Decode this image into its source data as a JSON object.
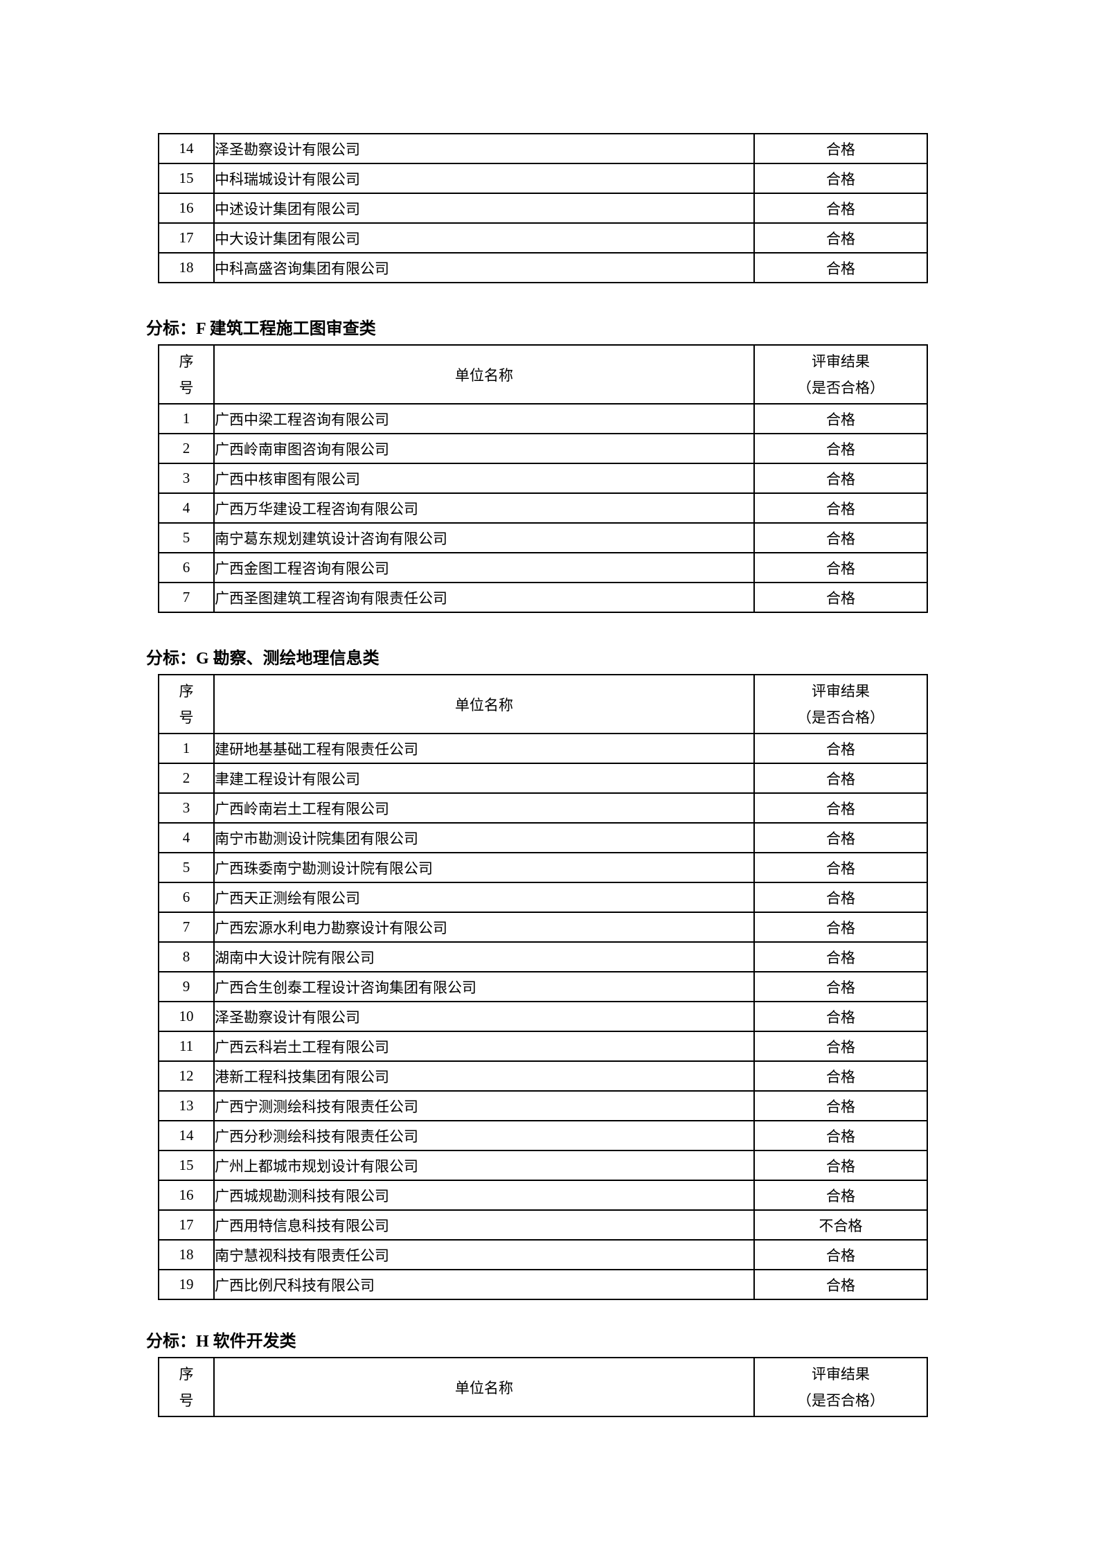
{
  "columns": {
    "no_char1": "序",
    "no_char2": "号",
    "name": "单位名称",
    "result_line1": "评审结果",
    "result_line2": "（是否合格）"
  },
  "sections": {
    "e_cont": {
      "rows": [
        {
          "no": "14",
          "name": "泽圣勘察设计有限公司",
          "result": "合格"
        },
        {
          "no": "15",
          "name": "中科瑞城设计有限公司",
          "result": "合格"
        },
        {
          "no": "16",
          "name": "中述设计集团有限公司",
          "result": "合格"
        },
        {
          "no": "17",
          "name": "中大设计集团有限公司",
          "result": "合格"
        },
        {
          "no": "18",
          "name": "中科高盛咨询集团有限公司",
          "result": "合格"
        }
      ]
    },
    "f": {
      "title": "分标：F 建筑工程施工图审查类",
      "rows": [
        {
          "no": "1",
          "name": "广西中梁工程咨询有限公司",
          "result": "合格"
        },
        {
          "no": "2",
          "name": "广西岭南审图咨询有限公司",
          "result": "合格"
        },
        {
          "no": "3",
          "name": "广西中核审图有限公司",
          "result": "合格"
        },
        {
          "no": "4",
          "name": "广西万华建设工程咨询有限公司",
          "result": "合格"
        },
        {
          "no": "5",
          "name": "南宁葛东规划建筑设计咨询有限公司",
          "result": "合格"
        },
        {
          "no": "6",
          "name": "广西金图工程咨询有限公司",
          "result": "合格"
        },
        {
          "no": "7",
          "name": "广西圣图建筑工程咨询有限责任公司",
          "result": "合格"
        }
      ]
    },
    "g": {
      "title": "分标：G 勘察、测绘地理信息类",
      "rows": [
        {
          "no": "1",
          "name": "建研地基基础工程有限责任公司",
          "result": "合格"
        },
        {
          "no": "2",
          "name": "聿建工程设计有限公司",
          "result": "合格"
        },
        {
          "no": "3",
          "name": "广西岭南岩土工程有限公司",
          "result": "合格"
        },
        {
          "no": "4",
          "name": "南宁市勘测设计院集团有限公司",
          "result": "合格"
        },
        {
          "no": "5",
          "name": "广西珠委南宁勘测设计院有限公司",
          "result": "合格"
        },
        {
          "no": "6",
          "name": "广西天正测绘有限公司",
          "result": "合格"
        },
        {
          "no": "7",
          "name": "广西宏源水利电力勘察设计有限公司",
          "result": "合格"
        },
        {
          "no": "8",
          "name": "湖南中大设计院有限公司",
          "result": "合格"
        },
        {
          "no": "9",
          "name": "广西合生创泰工程设计咨询集团有限公司",
          "result": "合格"
        },
        {
          "no": "10",
          "name": "泽圣勘察设计有限公司",
          "result": "合格"
        },
        {
          "no": "11",
          "name": "广西云科岩土工程有限公司",
          "result": "合格"
        },
        {
          "no": "12",
          "name": "港新工程科技集团有限公司",
          "result": "合格"
        },
        {
          "no": "13",
          "name": "广西宁测测绘科技有限责任公司",
          "result": "合格"
        },
        {
          "no": "14",
          "name": "广西分秒测绘科技有限责任公司",
          "result": "合格"
        },
        {
          "no": "15",
          "name": "广州上都城市规划设计有限公司",
          "result": "合格"
        },
        {
          "no": "16",
          "name": "广西城规勘测科技有限公司",
          "result": "合格"
        },
        {
          "no": "17",
          "name": "广西用特信息科技有限公司",
          "result": "不合格"
        },
        {
          "no": "18",
          "name": "南宁慧视科技有限责任公司",
          "result": "合格"
        },
        {
          "no": "19",
          "name": "广西比例尺科技有限公司",
          "result": "合格"
        }
      ]
    },
    "h": {
      "title": "分标：H 软件开发类",
      "rows": []
    }
  }
}
